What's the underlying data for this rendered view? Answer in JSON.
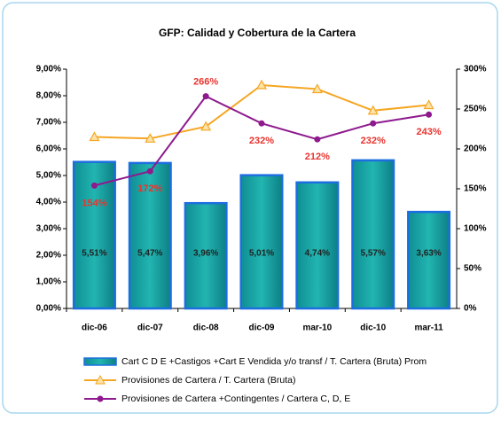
{
  "chart_data": {
    "type": "bar_line",
    "title": "GFP: Calidad y Cobertura de la Cartera",
    "categories": [
      "dic-06",
      "dic-07",
      "dic-08",
      "dic-09",
      "mar-10",
      "dic-10",
      "mar-11"
    ],
    "series": [
      {
        "name": "Cart C D E +Castigos +Cart E Vendida y/o transf / T. Cartera (Bruta) Prom",
        "type": "bar",
        "color": "#17a3a8",
        "border": "#1c6ee0",
        "values": [
          5.51,
          5.47,
          3.96,
          5.01,
          4.74,
          5.57,
          3.63
        ],
        "value_labels": [
          "5,51%",
          "5,47%",
          "3,96%",
          "5,01%",
          "4,74%",
          "5,57%",
          "3,63%"
        ]
      },
      {
        "name": "Provisiones de Cartera  / T. Cartera (Bruta)",
        "type": "line",
        "axis": "y2",
        "color": "#f5a623",
        "marker": "triangle",
        "values": [
          215,
          213,
          228,
          280,
          275,
          248,
          255
        ]
      },
      {
        "name": "Provisiones de Cartera +Contingentes / Cartera C, D, E",
        "type": "line",
        "axis": "y2",
        "color": "#8e1a8e",
        "marker": "circle",
        "values": [
          154,
          172,
          266,
          232,
          212,
          232,
          243
        ],
        "value_labels": [
          "154%",
          "172%",
          "266%",
          "232%",
          "212%",
          "232%",
          "243%"
        ]
      }
    ],
    "ylim": [
      0,
      9
    ],
    "yticks": [
      {
        "value": 0,
        "label": "0,00%"
      },
      {
        "value": 1,
        "label": "1,00%"
      },
      {
        "value": 2,
        "label": "2,00%"
      },
      {
        "value": 3,
        "label": "3,00%"
      },
      {
        "value": 4,
        "label": "4,00%"
      },
      {
        "value": 5,
        "label": "5,00%"
      },
      {
        "value": 6,
        "label": "6,00%"
      },
      {
        "value": 7,
        "label": "7,00%"
      },
      {
        "value": 8,
        "label": "8,00%"
      },
      {
        "value": 9,
        "label": "9,00%"
      }
    ],
    "y2lim": [
      0,
      300
    ],
    "y2ticks": [
      {
        "value": 0,
        "label": "0%"
      },
      {
        "value": 50,
        "label": "50%"
      },
      {
        "value": 100,
        "label": "100%"
      },
      {
        "value": 150,
        "label": "150%"
      },
      {
        "value": 200,
        "label": "200%"
      },
      {
        "value": 250,
        "label": "250%"
      },
      {
        "value": 300,
        "label": "300%"
      }
    ],
    "data_label_color": "#e8342e"
  }
}
